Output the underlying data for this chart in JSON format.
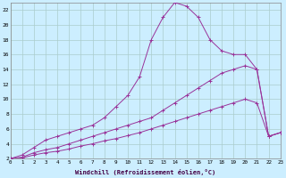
{
  "xlabel": "Windchill (Refroidissement éolien,°C)",
  "background_color": "#cceeff",
  "grid_color": "#aacccc",
  "line_color": "#993399",
  "xlim": [
    0,
    23
  ],
  "ylim": [
    2,
    23
  ],
  "xticks": [
    0,
    1,
    2,
    3,
    4,
    5,
    6,
    7,
    8,
    9,
    10,
    11,
    12,
    13,
    14,
    15,
    16,
    17,
    18,
    19,
    20,
    21,
    22,
    23
  ],
  "yticks": [
    2,
    4,
    6,
    8,
    10,
    12,
    14,
    16,
    18,
    20,
    22
  ],
  "series1_x": [
    0,
    1,
    2,
    3,
    4,
    5,
    6,
    7,
    8,
    9,
    10,
    11,
    12,
    13,
    14,
    15,
    16,
    17,
    18,
    19,
    20,
    21,
    22,
    23
  ],
  "series1_y": [
    2,
    2.5,
    3.5,
    4.5,
    5,
    5.5,
    6,
    6.5,
    7.5,
    9,
    10.5,
    13,
    18,
    21,
    23,
    22.5,
    21,
    18,
    16.5,
    16,
    16,
    14,
    5,
    5.5
  ],
  "series2_x": [
    0,
    1,
    2,
    3,
    4,
    5,
    6,
    7,
    8,
    9,
    10,
    11,
    12,
    13,
    14,
    15,
    16,
    17,
    18,
    19,
    20,
    21,
    22,
    23
  ],
  "series2_y": [
    2,
    2.2,
    2.8,
    3.2,
    3.5,
    4,
    4.5,
    5,
    5.5,
    6,
    6.5,
    7,
    7.5,
    8.5,
    9.5,
    10.5,
    11.5,
    12.5,
    13.5,
    14,
    14.5,
    14,
    5,
    5.5
  ],
  "series3_x": [
    0,
    1,
    2,
    3,
    4,
    5,
    6,
    7,
    8,
    9,
    10,
    11,
    12,
    13,
    14,
    15,
    16,
    17,
    18,
    19,
    20,
    21,
    22,
    23
  ],
  "series3_y": [
    2,
    2.1,
    2.5,
    2.8,
    3,
    3.3,
    3.7,
    4,
    4.4,
    4.7,
    5.1,
    5.5,
    6,
    6.5,
    7,
    7.5,
    8,
    8.5,
    9,
    9.5,
    10,
    9.5,
    5,
    5.5
  ]
}
